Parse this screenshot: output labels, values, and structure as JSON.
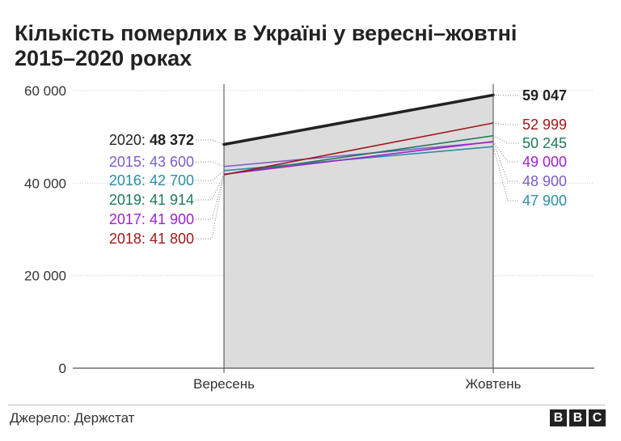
{
  "title_lines": [
    "Кількість  померлих в Україні у вересні–жовтні",
    "2015–2020 роках"
  ],
  "source": "Джерело: Держстат",
  "logo": [
    "B",
    "B",
    "C"
  ],
  "chart_data": {
    "type": "line",
    "title": "Кількість  померлих в Україні у вересні–жовтні 2015–2020 роках",
    "xlabel": "",
    "ylabel": "",
    "categories": [
      "Вересень",
      "Жовтень"
    ],
    "ylim": [
      0,
      60000
    ],
    "yticks": [
      0,
      20000,
      40000,
      60000
    ],
    "ytick_labels": [
      "0",
      "20 000",
      "40 000",
      "60 000"
    ],
    "grid": true,
    "series": [
      {
        "name": "2020",
        "values": [
          48372,
          59047
        ],
        "left_label": "2020:",
        "left_value": "48 372",
        "right_value": "59 047",
        "color": "#222222",
        "bold": true,
        "area": true
      },
      {
        "name": "2015",
        "values": [
          43600,
          48900
        ],
        "left_label": "2015:",
        "left_value": "43 600",
        "right_value": "48 900",
        "color": "#7b5ec6",
        "bold": false
      },
      {
        "name": "2016",
        "values": [
          42700,
          47900
        ],
        "left_label": "2016:",
        "left_value": "42 700",
        "right_value": "47 900",
        "color": "#2a8fa8",
        "bold": false
      },
      {
        "name": "2019",
        "values": [
          41914,
          50245
        ],
        "left_label": "2019:",
        "left_value": "41 914",
        "right_value": "50 245",
        "color": "#1e7a5a",
        "bold": false
      },
      {
        "name": "2017",
        "values": [
          41900,
          49000
        ],
        "left_label": "2017:",
        "left_value": "41 900",
        "right_value": "49 000",
        "color": "#a020d0",
        "bold": false
      },
      {
        "name": "2018",
        "values": [
          41800,
          52999
        ],
        "left_label": "2018:",
        "left_value": "41 800",
        "right_value": "52 999",
        "color": "#a01818",
        "bold": false
      }
    ]
  }
}
